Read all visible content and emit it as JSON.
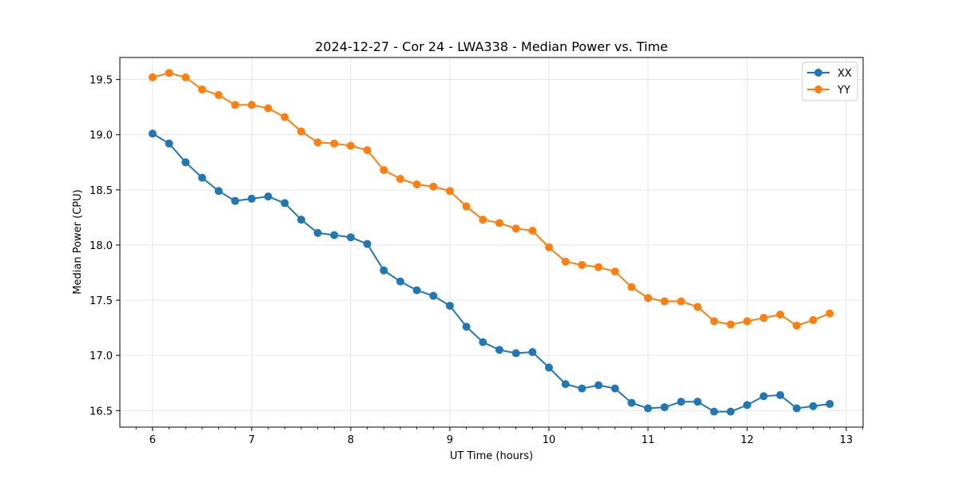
{
  "chart_data": {
    "type": "line",
    "title": "2024-12-27 - Cor 24 - LWA338 - Median Power vs. Time",
    "xlabel": "UT Time (hours)",
    "ylabel": "Median Power (CPU)",
    "xlim": [
      5.67,
      13.17
    ],
    "ylim": [
      16.35,
      19.7
    ],
    "xticks": [
      6,
      7,
      8,
      9,
      10,
      11,
      12,
      13
    ],
    "xtick_labels": [
      "6",
      "7",
      "8",
      "9",
      "10",
      "11",
      "12",
      "13"
    ],
    "yticks": [
      16.5,
      17.0,
      17.5,
      18.0,
      18.5,
      19.0,
      19.5
    ],
    "ytick_labels": [
      "16.5",
      "17.0",
      "17.5",
      "18.0",
      "18.5",
      "19.0",
      "19.5"
    ],
    "grid": true,
    "legend_position": "top-right",
    "x": [
      6.0,
      6.1667,
      6.3333,
      6.5,
      6.6667,
      6.8333,
      7.0,
      7.1667,
      7.3333,
      7.5,
      7.6667,
      7.8333,
      8.0,
      8.1667,
      8.3333,
      8.5,
      8.6667,
      8.8333,
      9.0,
      9.1667,
      9.3333,
      9.5,
      9.6667,
      9.8333,
      10.0,
      10.1667,
      10.3333,
      10.5,
      10.6667,
      10.8333,
      11.0,
      11.1667,
      11.3333,
      11.5,
      11.6667,
      11.8333,
      12.0,
      12.1667,
      12.3333,
      12.5,
      12.6667,
      12.8333
    ],
    "series": [
      {
        "name": "XX",
        "color": "#1f77b4",
        "values": [
          19.01,
          18.92,
          18.75,
          18.61,
          18.49,
          18.4,
          18.42,
          18.44,
          18.38,
          18.23,
          18.11,
          18.09,
          18.07,
          18.01,
          17.77,
          17.67,
          17.59,
          17.54,
          17.45,
          17.26,
          17.12,
          17.05,
          17.02,
          17.03,
          16.89,
          16.74,
          16.7,
          16.73,
          16.7,
          16.57,
          16.52,
          16.53,
          16.58,
          16.58,
          16.49,
          16.49,
          16.55,
          16.63,
          16.64,
          16.52,
          16.54,
          16.56
        ]
      },
      {
        "name": "YY",
        "color": "#ff7f0e",
        "values": [
          19.52,
          19.56,
          19.52,
          19.41,
          19.36,
          19.27,
          19.27,
          19.24,
          19.16,
          19.03,
          18.93,
          18.92,
          18.9,
          18.86,
          18.68,
          18.6,
          18.55,
          18.53,
          18.49,
          18.35,
          18.23,
          18.2,
          18.15,
          18.13,
          17.98,
          17.85,
          17.82,
          17.8,
          17.76,
          17.62,
          17.52,
          17.49,
          17.49,
          17.44,
          17.31,
          17.28,
          17.31,
          17.34,
          17.37,
          17.27,
          17.32,
          17.38
        ]
      }
    ]
  }
}
